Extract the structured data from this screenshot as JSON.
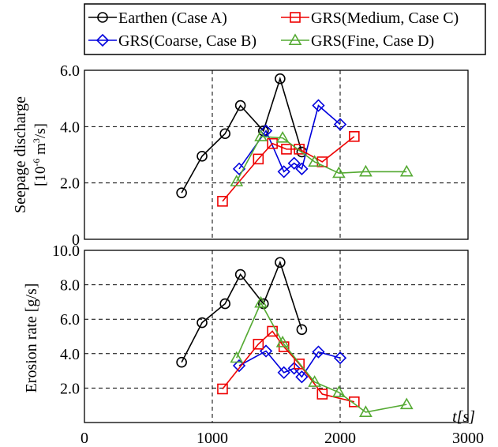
{
  "legend": {
    "entries": [
      {
        "series": 0,
        "label": "Earthen (Case A)"
      },
      {
        "series": 2,
        "label": "GRS(Medium, Case C)"
      },
      {
        "series": 1,
        "label": "GRS(Coarse, Case B)"
      },
      {
        "series": 3,
        "label": "GRS(Fine, Case D)"
      }
    ]
  },
  "colors": {
    "case_a": "#000000",
    "case_b": "#0000dd",
    "case_c": "#ee0000",
    "case_d": "#55aa33"
  },
  "chart_data": [
    {
      "type": "line",
      "title": "",
      "ylabel_line1": "Seepage discharge",
      "ylabel_line2_base": "[10",
      "ylabel_line2_exp": "-6",
      "ylabel_line2_unit": " m",
      "ylabel_line2_exp2": "3",
      "ylabel_line2_end": "/s]",
      "xlim": [
        0,
        3000
      ],
      "ylim": [
        0,
        6.0
      ],
      "yticks": [
        0,
        2.0,
        4.0,
        6.0
      ],
      "ytick_labels": [
        "0",
        "2.0",
        "4.0",
        "6.0"
      ],
      "xgrid": [
        1000,
        2000
      ],
      "ygrid": [
        2.0,
        4.0
      ],
      "series": [
        {
          "name": "Earthen (Case A)",
          "marker": "circle",
          "color": "#000000",
          "x": [
            760,
            920,
            1100,
            1220,
            1400,
            1530,
            1700
          ],
          "y": [
            1.65,
            2.95,
            3.75,
            4.75,
            3.85,
            5.7,
            3.1
          ]
        },
        {
          "name": "GRS(Coarse, Case B)",
          "marker": "diamond",
          "color": "#0000dd",
          "x": [
            1210,
            1420,
            1560,
            1640,
            1700,
            1830,
            2000
          ],
          "y": [
            2.5,
            3.85,
            2.4,
            2.7,
            2.5,
            4.75,
            4.08
          ]
        },
        {
          "name": "GRS(Medium, Case C)",
          "marker": "square",
          "color": "#ee0000",
          "x": [
            1080,
            1360,
            1470,
            1580,
            1680,
            1860,
            2110
          ],
          "y": [
            1.35,
            2.85,
            3.4,
            3.2,
            3.2,
            2.75,
            3.65
          ]
        },
        {
          "name": "GRS(Fine, Case D)",
          "marker": "triangle",
          "color": "#55aa33",
          "x": [
            1190,
            1380,
            1550,
            1800,
            1990,
            2200,
            2520
          ],
          "y": [
            2.05,
            3.65,
            3.6,
            2.75,
            2.35,
            2.4,
            2.4
          ]
        }
      ]
    },
    {
      "type": "line",
      "title": "",
      "ylabel": "Erosion rate [g/s]",
      "xlabel": "t[s]",
      "xlim": [
        0,
        3000
      ],
      "ylim": [
        0,
        10.0
      ],
      "yticks": [
        2.0,
        4.0,
        6.0,
        8.0,
        10.0
      ],
      "ytick_labels": [
        "2.0",
        "4.0",
        "6.0",
        "8.0",
        "10.0"
      ],
      "xticks": [
        0,
        1000,
        2000,
        3000
      ],
      "xtick_labels": [
        "0",
        "1000",
        "2000",
        "3000"
      ],
      "xgrid": [
        1000,
        2000
      ],
      "ygrid": [
        2.0,
        4.0,
        6.0,
        8.0
      ],
      "series": [
        {
          "name": "Earthen (Case A)",
          "marker": "circle",
          "color": "#000000",
          "x": [
            760,
            920,
            1100,
            1220,
            1400,
            1530,
            1700
          ],
          "y": [
            3.5,
            5.8,
            6.9,
            8.6,
            6.9,
            9.3,
            5.4
          ]
        },
        {
          "name": "GRS(Coarse, Case B)",
          "marker": "diamond",
          "color": "#0000dd",
          "x": [
            1210,
            1420,
            1560,
            1640,
            1700,
            1830,
            2000
          ],
          "y": [
            3.3,
            4.15,
            2.9,
            3.15,
            2.65,
            4.1,
            3.75
          ]
        },
        {
          "name": "GRS(Medium, Case C)",
          "marker": "square",
          "color": "#ee0000",
          "x": [
            1080,
            1360,
            1470,
            1560,
            1680,
            1860,
            2110
          ],
          "y": [
            1.95,
            4.55,
            5.3,
            4.4,
            3.4,
            1.65,
            1.2
          ]
        },
        {
          "name": "GRS(Fine, Case D)",
          "marker": "triangle",
          "color": "#55aa33",
          "x": [
            1190,
            1380,
            1550,
            1800,
            1990,
            2200,
            2520
          ],
          "y": [
            3.75,
            6.95,
            4.65,
            2.35,
            1.75,
            0.6,
            1.05
          ]
        }
      ]
    }
  ]
}
